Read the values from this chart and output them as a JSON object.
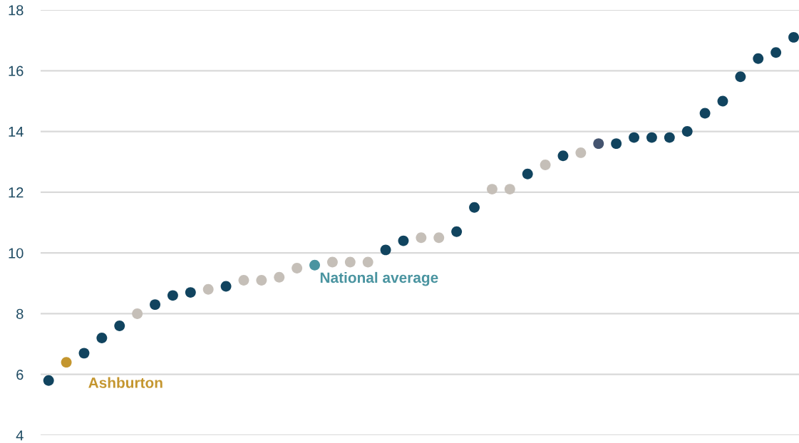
{
  "chart_data": {
    "type": "scatter",
    "marker": "circle",
    "grid": "y",
    "ylim": [
      4,
      18
    ],
    "yticks": [
      4,
      6,
      8,
      10,
      12,
      14,
      16,
      18
    ],
    "categories": [
      null,
      null,
      null,
      null,
      null,
      null,
      null,
      null,
      null,
      null,
      null,
      null,
      null,
      null,
      null,
      null,
      null,
      null,
      null,
      null,
      null,
      null,
      null,
      null,
      null,
      null,
      null,
      null,
      null,
      null,
      null,
      null,
      null,
      null,
      null,
      null,
      null,
      null,
      null,
      null,
      null,
      null,
      null
    ],
    "series": [
      {
        "values": [
          5.8,
          null,
          6.7,
          7.2,
          7.6,
          8.0,
          8.3,
          8.6,
          8.7,
          8.8,
          8.9,
          9.1,
          9.1,
          9.2,
          9.5,
          null,
          9.7,
          9.7,
          9.7,
          10.1,
          10.4,
          10.5,
          10.5,
          10.7,
          11.5,
          12.1,
          12.1,
          12.6,
          12.9,
          13.2,
          13.3,
          13.6,
          13.6,
          13.8,
          13.8,
          13.8,
          14.0,
          14.6,
          15.0,
          15.8,
          16.4,
          16.6,
          17.1
        ],
        "colors": [
          "#11445f",
          null,
          "#11445f",
          "#11445f",
          "#11445f",
          "#c5bfb8",
          "#11445f",
          "#11445f",
          "#11445f",
          "#c5bfb8",
          "#11445f",
          "#c5bfb8",
          "#c5bfb8",
          "#c5bfb8",
          "#c5bfb8",
          null,
          "#c5bfb8",
          "#c5bfb8",
          "#c5bfb8",
          "#11445f",
          "#11445f",
          "#c5bfb8",
          "#c5bfb8",
          "#11445f",
          "#11445f",
          "#c5bfb8",
          "#c5bfb8",
          "#11445f",
          "#c5bfb8",
          "#11445f",
          "#c5bfb8",
          "#44546f",
          "#11445f",
          "#11445f",
          "#11445f",
          "#11445f",
          "#11445f",
          "#11445f",
          "#11445f",
          "#11445f",
          "#11445f",
          "#11445f",
          "#11445f"
        ]
      },
      {
        "name": "Ashburton",
        "color": "#c4962f",
        "values": [
          null,
          6.4,
          null,
          null,
          null,
          null,
          null,
          null,
          null,
          null,
          null,
          null,
          null,
          null,
          null,
          null,
          null,
          null,
          null,
          null,
          null,
          null,
          null,
          null,
          null,
          null,
          null,
          null,
          null,
          null,
          null,
          null,
          null,
          null,
          null,
          null,
          null,
          null,
          null,
          null,
          null,
          null,
          null
        ]
      },
      {
        "name": "National average",
        "color": "#4a94a0",
        "values": [
          null,
          null,
          null,
          null,
          null,
          null,
          null,
          null,
          null,
          null,
          null,
          null,
          null,
          null,
          null,
          9.6,
          null,
          null,
          null,
          null,
          null,
          null,
          null,
          null,
          null,
          null,
          null,
          null,
          null,
          null,
          null,
          null,
          null,
          null,
          null,
          null,
          null,
          null,
          null,
          null,
          null,
          null,
          null
        ]
      }
    ]
  }
}
